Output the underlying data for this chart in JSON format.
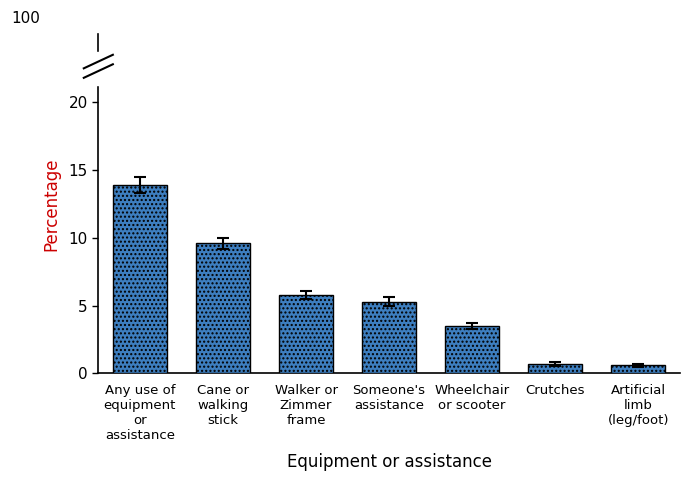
{
  "categories": [
    "Any use of\nequipment\nor\nassistance",
    "Cane or\nwalking\nstick",
    "Walker or\nZimmer\nframe",
    "Someone's\nassistance",
    "Wheelchair\nor scooter",
    "Crutches",
    "Artificial\nlimb\n(leg/foot)"
  ],
  "values": [
    13.9,
    9.6,
    5.8,
    5.3,
    3.5,
    0.7,
    0.6
  ],
  "errors": [
    0.6,
    0.4,
    0.3,
    0.3,
    0.25,
    0.15,
    0.12
  ],
  "bar_color": "#3D7EBF",
  "bar_edgecolor": "#000000",
  "ylabel": "Percentage",
  "xlabel": "Equipment or assistance",
  "ylabel_color": "#CC0000",
  "ylim_display": [
    0,
    25
  ],
  "yticks": [
    0,
    5,
    10,
    15,
    20
  ],
  "ytick_top_label": "100",
  "background_color": "#ffffff"
}
